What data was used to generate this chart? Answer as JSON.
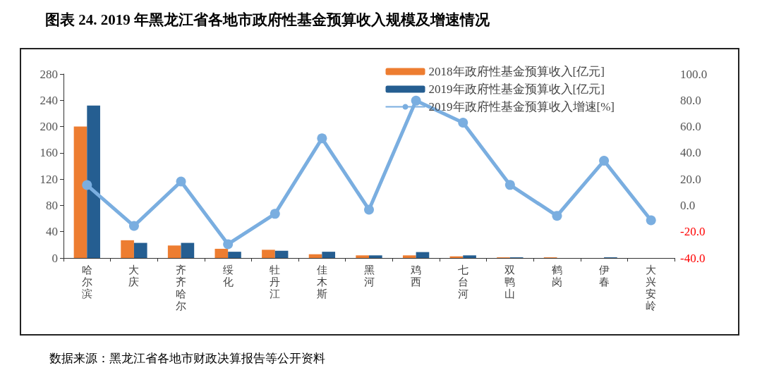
{
  "chart_data": {
    "type": "bar",
    "title": "图表 24. 2019 年黑龙江省各地市政府性基金预算收入规模及增速情况",
    "categories": [
      "哈尔滨",
      "大庆",
      "齐齐哈尔",
      "绥化",
      "牡丹江",
      "佳木斯",
      "黑河",
      "鸡西",
      "七台河",
      "双鸭山",
      "鹤岗",
      "伊春",
      "大兴安岭"
    ],
    "series": [
      {
        "name": "2018年政府性基金预算收入[亿元]",
        "color": "#ed7d31",
        "values": [
          200,
          27,
          19,
          14,
          12.5,
          5.7,
          4,
          4,
          2.5,
          1,
          1,
          0,
          0
        ]
      },
      {
        "name": "2019年政府性基金预算收入[亿元]",
        "color": "#255e91",
        "values": [
          232,
          23,
          23,
          9.5,
          11,
          9.5,
          4,
          9,
          4,
          1,
          0,
          1,
          0
        ]
      },
      {
        "name": "2019年政府性基金预算收入增速[%]",
        "type": "line",
        "axis": "y2",
        "color": "#7aaee0",
        "values": [
          15.5,
          -15.6,
          18.2,
          -29.5,
          -6.4,
          51,
          -3.2,
          79.7,
          63,
          15.6,
          -7.9,
          34,
          -11.3
        ]
      }
    ],
    "ylim": [
      0,
      280
    ],
    "yticks": [
      0,
      40,
      80,
      120,
      160,
      200,
      240,
      280
    ],
    "y2lim": [
      -40,
      100
    ],
    "y2ticks": [
      {
        "value": -40,
        "label": "-40.0"
      },
      {
        "value": -20,
        "label": "-20.0"
      },
      {
        "value": 0,
        "label": "0.0"
      },
      {
        "value": 20,
        "label": "20.0"
      },
      {
        "value": 40,
        "label": "40.0"
      },
      {
        "value": 60,
        "label": "60.0"
      },
      {
        "value": 80,
        "label": "80.0"
      },
      {
        "value": 100,
        "label": "100.0"
      }
    ],
    "legend": "top right",
    "grid": false,
    "marker": "circle",
    "annotations": [
      "数据来源：黑龙江省各地市财政决算报告等公开资料"
    ]
  }
}
